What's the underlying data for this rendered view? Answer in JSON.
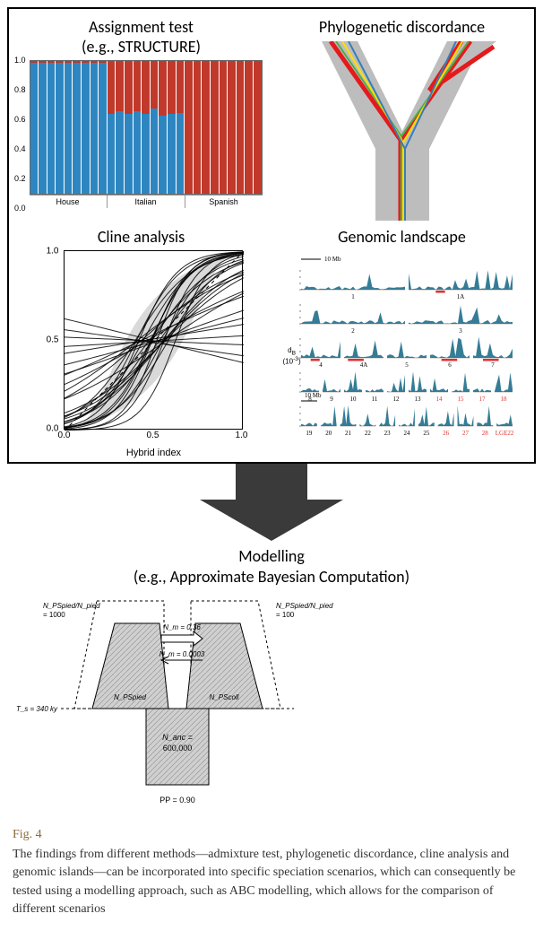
{
  "panels": {
    "structure": {
      "title_line1": "Assignment test",
      "title_line2": "(e.g., STRUCTURE)",
      "type": "stacked-bar",
      "ylim": [
        0.0,
        1.0
      ],
      "yticks": [
        0.0,
        0.2,
        0.4,
        0.6,
        0.8,
        1.0
      ],
      "color_top": "#c0392b",
      "color_bottom": "#2e86c1",
      "groups": [
        {
          "label": "House",
          "bars": [
            0.01,
            0.01,
            0.01,
            0.01,
            0.01,
            0.01,
            0.01,
            0.01,
            0.01
          ]
        },
        {
          "label": "Italian",
          "bars": [
            0.4,
            0.38,
            0.4,
            0.38,
            0.4,
            0.36,
            0.41,
            0.4,
            0.39
          ]
        },
        {
          "label": "Spanish",
          "bars": [
            1.0,
            1.0,
            1.0,
            1.0,
            1.0,
            1.0,
            1.0,
            1.0,
            1.0
          ]
        }
      ]
    },
    "phylo": {
      "title": "Phylogenetic discordance",
      "type": "tree",
      "background_branch_color": "#bdbdbd",
      "line_colors": [
        "#e41a1c",
        "#4daf4a",
        "#ffde00",
        "#377eb8"
      ],
      "line_width_main": 5,
      "line_width_other": 2
    },
    "cline": {
      "title": "Cline analysis",
      "type": "line-bundle",
      "xlabel": "Hybrid index",
      "xlim": [
        0.0,
        1.0
      ],
      "ylim": [
        0.0,
        1.0
      ],
      "xticks": [
        0.0,
        0.5,
        1.0
      ],
      "yticks": [
        0.0,
        0.5,
        1.0
      ],
      "fill_color": "#d9d9d9",
      "line_color": "#000000",
      "line_width": 1,
      "n_curves": 30
    },
    "genomic": {
      "title": "Genomic landscape",
      "type": "manhattan-tracks",
      "track_color": "#1f6f8b",
      "highlight_color": "#e03131",
      "ylabel_html": "d<sub>B</sub><br>(10<sup>-3</sup>)",
      "scale_label": "10 Mb",
      "rows": [
        {
          "chroms": [
            "1",
            "1A"
          ]
        },
        {
          "chroms": [
            "2",
            "3"
          ]
        },
        {
          "chroms": [
            "4",
            "4A",
            "5",
            "6",
            "7"
          ]
        },
        {
          "chroms": [
            "8",
            "9",
            "10",
            "11",
            "12",
            "13",
            "14",
            "15",
            "17",
            "18"
          ]
        },
        {
          "chroms": [
            "19",
            "20",
            "21",
            "22",
            "23",
            "24",
            "25",
            "26",
            "27",
            "28",
            "LGE22"
          ]
        }
      ]
    }
  },
  "modelling": {
    "title_line1": "Modelling",
    "title_line2": "(e.g., Approximate Bayesian Computation)",
    "type": "demographic-model",
    "fill_color": "#d0d0d0",
    "stroke_color": "#000000",
    "left_ratio_label": "N_PSpied/N_pied",
    "left_ratio_value": "= 1000",
    "right_ratio_label": "N_PSpied/N_pied",
    "right_ratio_value": "= 100",
    "nm_top": "N_m = 0.36",
    "nm_bottom": "N_m = 0.0003",
    "ts_label": "T_s = 340 ky",
    "left_pop": "N_PSpied",
    "right_pop": "N_PScoll",
    "anc_label": "N_anc =",
    "anc_value": "600,000",
    "pp_label": "PP = 0.90"
  },
  "caption": {
    "label": "Fig. 4",
    "text": "The findings from different methods—admixture test, phylogenetic discordance, cline analysis and genomic islands—can be incorporated into specific speciation scenarios, which can consequently be tested using a modelling approach, such as ABC modelling, which allows for the comparison of different scenarios"
  }
}
